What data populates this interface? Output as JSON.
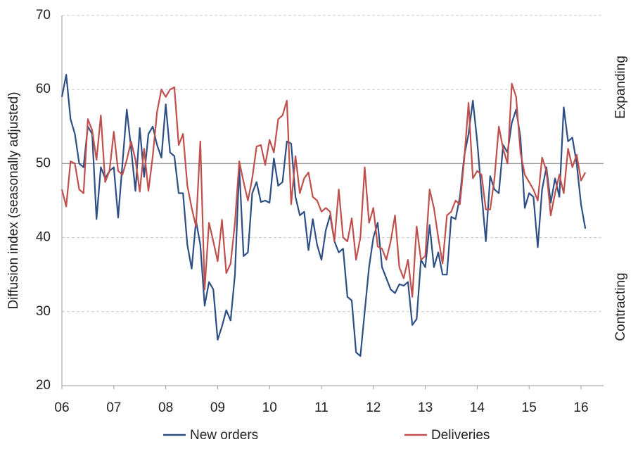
{
  "chart_data": {
    "type": "line",
    "y_label": "Diffusion index (seasonally adjusted)",
    "annotations": [
      "Expanding",
      "Contracting"
    ],
    "categories": [
      "06",
      null,
      null,
      null,
      null,
      null,
      null,
      null,
      null,
      null,
      null,
      null,
      "07",
      null,
      null,
      null,
      null,
      null,
      null,
      null,
      null,
      null,
      null,
      null,
      "08",
      null,
      null,
      null,
      null,
      null,
      null,
      null,
      null,
      null,
      null,
      null,
      "09",
      null,
      null,
      null,
      null,
      null,
      null,
      null,
      null,
      null,
      null,
      null,
      "10",
      null,
      null,
      null,
      null,
      null,
      null,
      null,
      null,
      null,
      null,
      null,
      "11",
      null,
      null,
      null,
      null,
      null,
      null,
      null,
      null,
      null,
      null,
      null,
      "12",
      null,
      null,
      null,
      null,
      null,
      null,
      null,
      null,
      null,
      null,
      null,
      "13",
      null,
      null,
      null,
      null,
      null,
      null,
      null,
      null,
      null,
      null,
      null,
      "14",
      null,
      null,
      null,
      null,
      null,
      null,
      null,
      null,
      null,
      null,
      null,
      "15",
      null,
      null,
      null,
      null,
      null,
      null,
      null,
      null,
      null,
      null,
      null,
      "16",
      null
    ],
    "series": [
      {
        "name": "New orders",
        "color": "#2e4f85",
        "values": [
          59,
          62,
          56,
          54,
          50,
          49.5,
          55,
          54,
          42.5,
          49.5,
          48,
          49,
          49.5,
          42.7,
          50,
          57.3,
          52,
          46.3,
          54.8,
          48.2,
          54,
          55,
          52.5,
          50.8,
          58,
          51.5,
          51,
          46,
          46,
          39,
          35.8,
          42.3,
          39,
          30.8,
          34,
          33,
          26.2,
          28,
          30.2,
          28.8,
          35,
          49.5,
          37.5,
          38,
          46,
          47.5,
          44.8,
          45,
          44.7,
          50.7,
          47,
          47.5,
          53,
          52.7,
          45.5,
          43,
          43.5,
          38.3,
          42.5,
          39,
          37,
          41,
          43,
          39.5,
          38,
          38.5,
          32,
          31.5,
          24.5,
          24,
          30,
          36,
          40,
          42,
          36,
          34.5,
          33,
          32.5,
          33.7,
          33.5,
          34,
          28.2,
          29,
          37,
          36,
          41.7,
          36,
          38,
          35,
          35,
          42.8,
          42.5,
          45.5,
          51,
          54,
          58.5,
          53,
          46,
          39.5,
          48.3,
          46.5,
          46,
          52.5,
          51.5,
          55.5,
          57.3,
          53.5,
          44,
          46,
          45.5,
          38.7,
          46.5,
          49.5,
          44.7,
          48,
          45.5,
          57.6,
          53,
          53.5,
          50,
          44.5,
          41.2
        ]
      },
      {
        "name": "Deliveries",
        "color": "#c0504d",
        "values": [
          46.5,
          44.2,
          50.3,
          50,
          46.5,
          46,
          56,
          54.5,
          50.5,
          56.5,
          47.5,
          49,
          54.3,
          49,
          48.5,
          50.5,
          53,
          50.5,
          46.2,
          52,
          46.3,
          51,
          57,
          60,
          59,
          60,
          60.3,
          52.5,
          54,
          47,
          44,
          41.5,
          53,
          33,
          42,
          39.5,
          36.8,
          42.4,
          35.2,
          36.5,
          42,
          50.3,
          47.5,
          45,
          48,
          52.3,
          52.5,
          49.8,
          53.2,
          51.5,
          56,
          56.5,
          58.5,
          44.5,
          51,
          46,
          48,
          48.8,
          45.5,
          45,
          43.5,
          44,
          43.5,
          39.5,
          46.5,
          40,
          39.5,
          42.6,
          37,
          40,
          49.5,
          42,
          44,
          38.8,
          38.5,
          37,
          39.5,
          43,
          36,
          34.5,
          37,
          32,
          41.5,
          37,
          37.5,
          46.5,
          44,
          40,
          36.5,
          43,
          43.5,
          45,
          44.5,
          50.5,
          58.2,
          48,
          49,
          48.5,
          43.8,
          43.8,
          48,
          55,
          52,
          50,
          60.8,
          59,
          51.5,
          48.5,
          47.5,
          46.5,
          45,
          50.8,
          49,
          43,
          46,
          48.5,
          46,
          52,
          49.5,
          51.2,
          47.7,
          48.8
        ]
      }
    ],
    "ylim": [
      20,
      70
    ],
    "yticks": [
      20,
      30,
      40,
      50,
      60,
      70
    ],
    "reference_line": 50,
    "grid": true,
    "legend": "bottom"
  }
}
